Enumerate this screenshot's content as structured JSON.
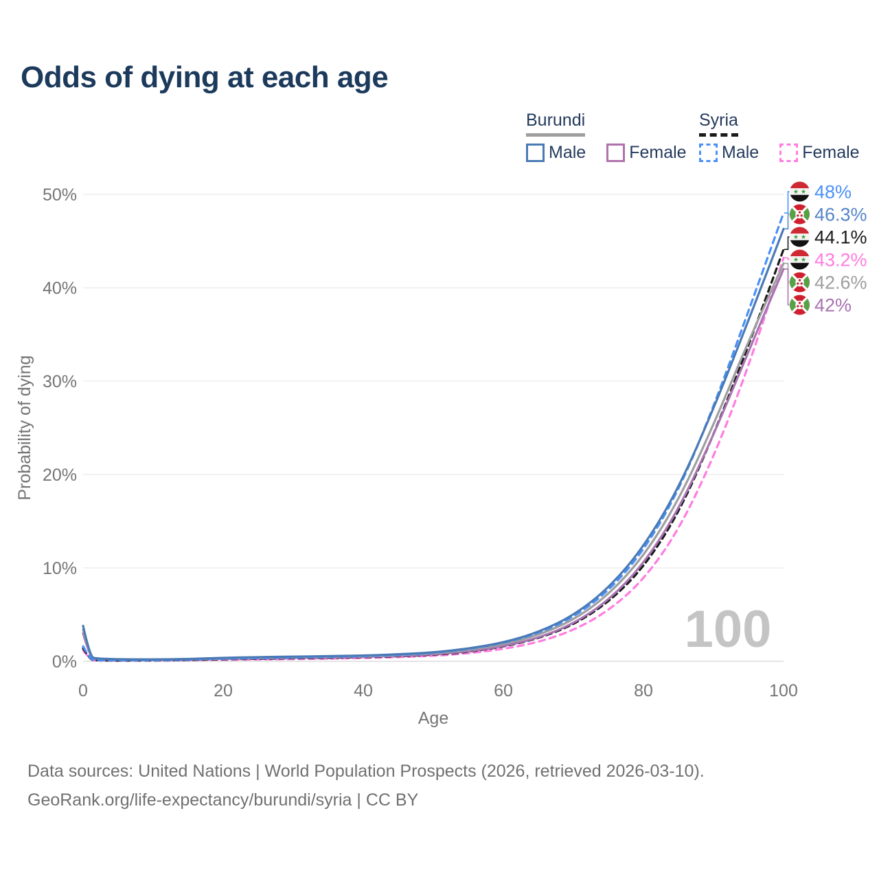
{
  "title": "Odds of dying at each age",
  "legend": {
    "groups": [
      {
        "title": "Burundi",
        "line_style": "solid",
        "underline_color": "#9e9e9e",
        "items": [
          {
            "label": "Male",
            "color": "#4a7ab5",
            "line_style": "solid"
          },
          {
            "label": "Female",
            "color": "#b071ad",
            "line_style": "solid"
          }
        ]
      },
      {
        "title": "Syria",
        "line_style": "dashed",
        "underline_color": "#1a1a1a",
        "items": [
          {
            "label": "Male",
            "color": "#4a90f7",
            "line_style": "dashed"
          },
          {
            "label": "Female",
            "color": "#ff7ce0",
            "line_style": "dashed"
          }
        ]
      }
    ]
  },
  "chart_data": {
    "type": "line",
    "title": "Odds of dying at each age",
    "xlabel": "Age",
    "ylabel": "Probability of dying",
    "xlim": [
      0,
      100
    ],
    "ylim": [
      0,
      50
    ],
    "grid": "horizontal",
    "watermark": "100",
    "x_ticks": [
      {
        "value": 0,
        "label": "0"
      },
      {
        "value": 20,
        "label": "20"
      },
      {
        "value": 40,
        "label": "40"
      },
      {
        "value": 60,
        "label": "60"
      },
      {
        "value": 80,
        "label": "80"
      },
      {
        "value": 100,
        "label": "100"
      }
    ],
    "y_ticks": [
      {
        "value": 0,
        "label": "0%"
      },
      {
        "value": 10,
        "label": "10%"
      },
      {
        "value": 20,
        "label": "20%"
      },
      {
        "value": 30,
        "label": "30%"
      },
      {
        "value": 40,
        "label": "40%"
      },
      {
        "value": 50,
        "label": "50%"
      }
    ],
    "x": [
      0,
      1,
      2,
      5,
      10,
      15,
      20,
      25,
      30,
      35,
      40,
      45,
      50,
      55,
      60,
      65,
      70,
      75,
      80,
      85,
      90,
      95,
      100
    ],
    "series": [
      {
        "id": "syria_female",
        "name": "Syria Female",
        "color": "#ff7ce0",
        "line_style": "dashed",
        "values": [
          1.2,
          0.14,
          0.09,
          0.07,
          0.08,
          0.11,
          0.16,
          0.2,
          0.24,
          0.29,
          0.35,
          0.44,
          0.58,
          0.85,
          1.3,
          2.05,
          3.3,
          5.4,
          8.7,
          14.0,
          21.8,
          31.5,
          43.2
        ]
      },
      {
        "id": "syria_all",
        "name": "Syria",
        "color": "#1a1a1a",
        "line_style": "dashed",
        "values": [
          1.4,
          0.17,
          0.1,
          0.08,
          0.09,
          0.14,
          0.22,
          0.27,
          0.32,
          0.37,
          0.44,
          0.54,
          0.7,
          1.0,
          1.55,
          2.45,
          3.9,
          6.3,
          10.0,
          15.8,
          24.2,
          33.8,
          44.1
        ]
      },
      {
        "id": "burundi_female",
        "name": "Burundi Female",
        "color": "#a873b2",
        "line_style": "solid",
        "values": [
          3.0,
          0.38,
          0.25,
          0.18,
          0.16,
          0.2,
          0.27,
          0.32,
          0.37,
          0.42,
          0.48,
          0.58,
          0.75,
          1.05,
          1.6,
          2.5,
          4.0,
          6.5,
          10.4,
          16.2,
          24.2,
          33.2,
          42.0
        ]
      },
      {
        "id": "burundi_all",
        "name": "Burundi",
        "color": "#9e9e9e",
        "line_style": "solid",
        "values": [
          3.4,
          0.42,
          0.28,
          0.2,
          0.18,
          0.22,
          0.32,
          0.38,
          0.44,
          0.48,
          0.55,
          0.65,
          0.85,
          1.2,
          1.8,
          2.8,
          4.4,
          7.1,
          11.2,
          17.2,
          25.3,
          34.3,
          42.6
        ]
      },
      {
        "id": "syria_male",
        "name": "Syria Male",
        "color": "#4a90f7",
        "line_style": "dashed",
        "values": [
          1.6,
          0.2,
          0.12,
          0.1,
          0.1,
          0.18,
          0.3,
          0.36,
          0.42,
          0.48,
          0.56,
          0.68,
          0.9,
          1.3,
          1.95,
          3.0,
          4.7,
          7.5,
          11.8,
          18.2,
          27.2,
          37.5,
          48.0
        ]
      },
      {
        "id": "burundi_male",
        "name": "Burundi Male",
        "color": "#4a7ab5",
        "line_style": "solid",
        "values": [
          3.8,
          0.45,
          0.3,
          0.22,
          0.2,
          0.25,
          0.38,
          0.45,
          0.5,
          0.55,
          0.62,
          0.75,
          0.95,
          1.35,
          2.0,
          3.1,
          4.9,
          7.8,
          12.2,
          18.5,
          27.0,
          36.5,
          46.3
        ]
      }
    ],
    "end_labels": [
      {
        "text": "48%",
        "value": 48.0,
        "series": "syria_male",
        "flag": "syria",
        "color": "#4a90f7"
      },
      {
        "text": "46.3%",
        "value": 46.3,
        "series": "burundi_male",
        "flag": "burundi",
        "color": "#5585c8"
      },
      {
        "text": "44.1%",
        "value": 44.1,
        "series": "syria_all",
        "flag": "syria",
        "color": "#1a1a1a"
      },
      {
        "text": "43.2%",
        "value": 43.2,
        "series": "syria_female",
        "flag": "syria",
        "color": "#ff7ce0"
      },
      {
        "text": "42.6%",
        "value": 42.6,
        "series": "burundi_all",
        "flag": "burundi",
        "color": "#9e9e9e"
      },
      {
        "text": "42%",
        "value": 42.0,
        "series": "burundi_female",
        "flag": "burundi",
        "color": "#a873b2"
      }
    ]
  },
  "footer": {
    "line1": "Data sources: United Nations | World Population Prospects (2026, retrieved 2026-03-10).",
    "line2": "GeoRank.org/life-expectancy/burundi/syria | CC BY"
  }
}
